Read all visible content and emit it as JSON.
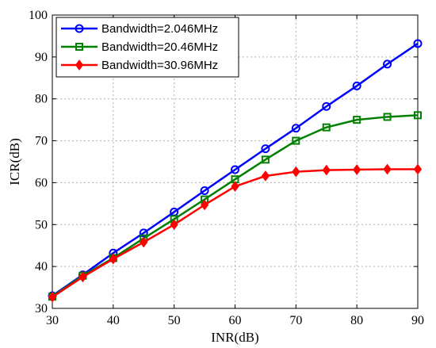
{
  "chart_data": {
    "type": "line",
    "title": "",
    "xlabel": "INR(dB)",
    "ylabel": "ICR(dB)",
    "xlim": [
      30,
      90
    ],
    "ylim": [
      30,
      100
    ],
    "xticks": [
      30,
      40,
      50,
      60,
      70,
      80,
      90
    ],
    "yticks": [
      30,
      40,
      50,
      60,
      70,
      80,
      90,
      100
    ],
    "grid": true,
    "legend_position": "top-left",
    "x": [
      30,
      35,
      40,
      45,
      50,
      55,
      60,
      65,
      70,
      75,
      80,
      85,
      90
    ],
    "series": [
      {
        "name": "Bandwidth=2.046MHz",
        "color": "#0000ff",
        "marker": "circle",
        "values": [
          33,
          38,
          43.2,
          48,
          53,
          58.1,
          63.1,
          68.1,
          73,
          78.2,
          83.1,
          88.3,
          93.2
        ]
      },
      {
        "name": "Bandwidth=20.46MHz",
        "color": "#008000",
        "marker": "square",
        "values": [
          32.8,
          37.8,
          42,
          46.7,
          51.3,
          56,
          60.8,
          65.5,
          70,
          73.2,
          75,
          75.7,
          76.1
        ]
      },
      {
        "name": "Bandwidth=30.96MHz",
        "color": "#ff0000",
        "marker": "diamond",
        "values": [
          32.7,
          37.5,
          41.8,
          45.8,
          50,
          54.7,
          59.1,
          61.6,
          62.6,
          63,
          63.1,
          63.2,
          63.2
        ]
      }
    ]
  }
}
